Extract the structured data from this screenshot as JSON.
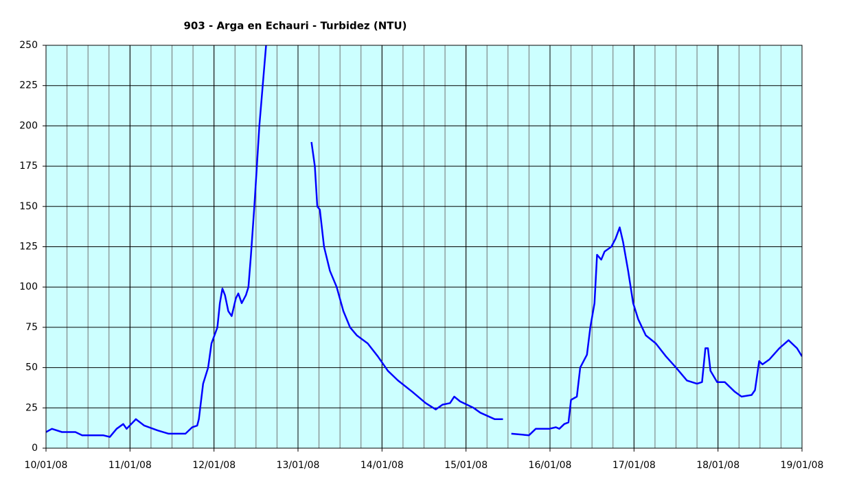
{
  "chart_data": {
    "type": "line",
    "title": "903 - Arga en Echauri - Turbidez (NTU)",
    "x": [
      0.0,
      0.07,
      0.19,
      0.35,
      0.43,
      0.68,
      0.76,
      0.84,
      0.92,
      0.96,
      1.07,
      1.17,
      1.33,
      1.46,
      1.66,
      1.74,
      1.8,
      1.82,
      1.87,
      1.93,
      1.97,
      2.04,
      2.07,
      2.1,
      2.13,
      2.17,
      2.21,
      2.26,
      2.29,
      2.33,
      2.38,
      2.41,
      2.44,
      2.48,
      2.51,
      2.54,
      2.58,
      2.62,
      2.66,
      2.9,
      3.16,
      3.2,
      3.23,
      3.26,
      3.31,
      3.38,
      3.46,
      3.54,
      3.62,
      3.7,
      3.83,
      3.95,
      4.07,
      4.19,
      4.36,
      4.52,
      4.64,
      4.72,
      4.81,
      4.86,
      4.93,
      5.09,
      5.17,
      5.34,
      5.44,
      5.5,
      5.54,
      5.75,
      5.83,
      5.99,
      6.07,
      6.11,
      6.17,
      6.22,
      6.25,
      6.32,
      6.36,
      6.44,
      6.48,
      6.53,
      6.56,
      6.61,
      6.65,
      6.73,
      6.78,
      6.83,
      6.87,
      6.93,
      6.99,
      7.05,
      7.14,
      7.26,
      7.38,
      7.5,
      7.63,
      7.75,
      7.81,
      7.85,
      7.88,
      7.91,
      7.99,
      8.08,
      8.2,
      8.28,
      8.4,
      8.44,
      8.49,
      8.53,
      8.61,
      8.73,
      8.84,
      8.94,
      9.0
    ],
    "series": [
      {
        "color": "#0000ff",
        "values": [
          10,
          12,
          10,
          10,
          8,
          8,
          7,
          12,
          15,
          12,
          18,
          14,
          11,
          9,
          9,
          13,
          14,
          18,
          40,
          50,
          65,
          75,
          90,
          99,
          95,
          85,
          82,
          93,
          96,
          90,
          95,
          100,
          120,
          150,
          175,
          200,
          225,
          250,
          265,
          null,
          190,
          175,
          150,
          148,
          125,
          110,
          100,
          85,
          75,
          70,
          65,
          57,
          48,
          42,
          35,
          28,
          24,
          27,
          28,
          32,
          29,
          25,
          22,
          18,
          18,
          null,
          9,
          8,
          12,
          12,
          13,
          12,
          15,
          16,
          30,
          32,
          50,
          58,
          75,
          90,
          120,
          117,
          122,
          125,
          130,
          137,
          128,
          110,
          90,
          80,
          70,
          65,
          57,
          50,
          42,
          40,
          41,
          62,
          62,
          48,
          41,
          41,
          35,
          32,
          33,
          36,
          54,
          52,
          55,
          62,
          67,
          62,
          57
        ]
      }
    ],
    "xlim": [
      0,
      9
    ],
    "xticks": [
      {
        "value": 0,
        "label": "10/01/08"
      },
      {
        "value": 1,
        "label": "11/01/08"
      },
      {
        "value": 2,
        "label": "12/01/08"
      },
      {
        "value": 3,
        "label": "13/01/08"
      },
      {
        "value": 4,
        "label": "14/01/08"
      },
      {
        "value": 5,
        "label": "15/01/08"
      },
      {
        "value": 6,
        "label": "16/01/08"
      },
      {
        "value": 7,
        "label": "17/01/08"
      },
      {
        "value": 8,
        "label": "18/01/08"
      },
      {
        "value": 9,
        "label": "19/01/08"
      }
    ],
    "x_minor_step": 0.25,
    "ylim": [
      0,
      250
    ],
    "yticks": [
      0,
      25,
      50,
      75,
      100,
      125,
      150,
      175,
      200,
      225,
      250
    ],
    "grid": true
  }
}
